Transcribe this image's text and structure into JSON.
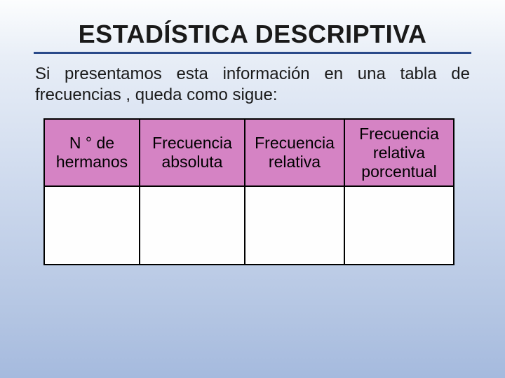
{
  "title": "ESTADÍSTICA DESCRIPTIVA",
  "intro": "Si presentamos esta información en una tabla de frecuencias , queda como sigue:",
  "table": {
    "header_bg": "#d583c4",
    "body_bg": "#fefefe",
    "columns": [
      "N ° de hermanos",
      "Frecuencia absoluta",
      "Frecuencia relativa",
      "Frecuencia relativa porcentual"
    ],
    "rows": [
      [
        "",
        "",
        "",
        ""
      ]
    ]
  },
  "colors": {
    "title_underline": "#2a4a8a",
    "text": "#1a1a1a",
    "border": "#000000"
  }
}
